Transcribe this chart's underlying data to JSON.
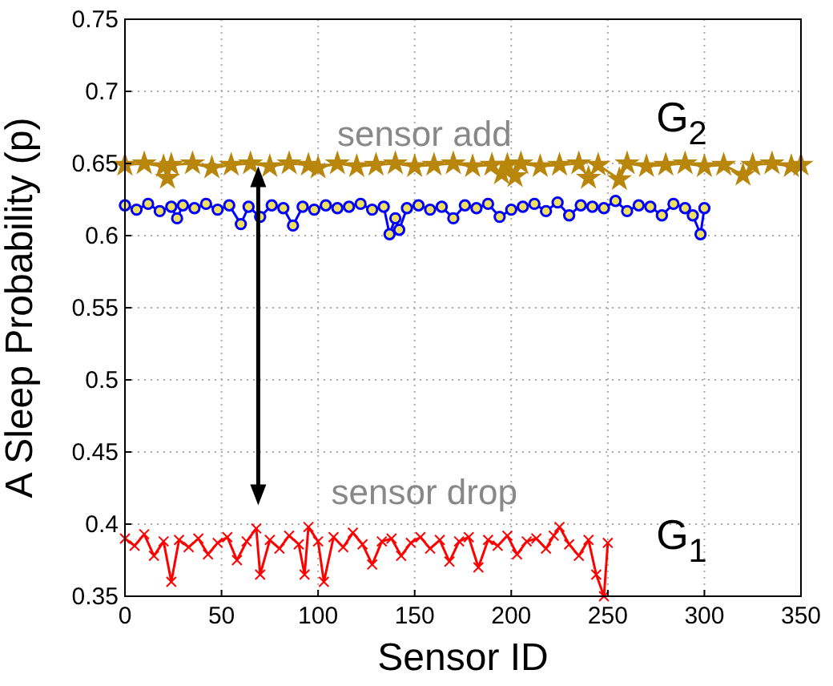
{
  "chart_data": {
    "type": "line",
    "xlabel": "Sensor ID",
    "ylabel": "A Sleep Probability (p)",
    "xlim": [
      0,
      350
    ],
    "ylim": [
      0.35,
      0.75
    ],
    "xticks": [
      0,
      50,
      100,
      150,
      200,
      250,
      300,
      350
    ],
    "yticks": [
      {
        "value": 0.35,
        "label": "0.35"
      },
      {
        "value": 0.4,
        "label": "0.4"
      },
      {
        "value": 0.45,
        "label": "0.45"
      },
      {
        "value": 0.5,
        "label": "0.5"
      },
      {
        "value": 0.55,
        "label": "0.55"
      },
      {
        "value": 0.6,
        "label": "0.6"
      },
      {
        "value": 0.65,
        "label": "0.65"
      },
      {
        "value": 0.7,
        "label": "0.7"
      },
      {
        "value": 0.75,
        "label": "0.75"
      }
    ],
    "grid": true,
    "series": [
      {
        "color": "#b8860b",
        "marker": "star",
        "x": [
          0,
          10,
          20,
          22,
          24,
          35,
          45,
          55,
          65,
          75,
          85,
          95,
          100,
          110,
          120,
          130,
          140,
          150,
          160,
          170,
          180,
          190,
          195,
          198,
          202,
          205,
          215,
          225,
          235,
          240,
          245,
          256,
          260,
          270,
          280,
          290,
          300,
          310,
          320,
          325,
          335,
          345,
          350
        ],
        "values": [
          0.649,
          0.65,
          0.648,
          0.64,
          0.649,
          0.65,
          0.647,
          0.649,
          0.65,
          0.648,
          0.65,
          0.649,
          0.647,
          0.65,
          0.648,
          0.649,
          0.65,
          0.648,
          0.649,
          0.65,
          0.648,
          0.649,
          0.643,
          0.649,
          0.641,
          0.65,
          0.648,
          0.649,
          0.65,
          0.64,
          0.649,
          0.639,
          0.65,
          0.648,
          0.649,
          0.65,
          0.648,
          0.649,
          0.642,
          0.649,
          0.65,
          0.648,
          0.649
        ]
      },
      {
        "color": "#0000ff",
        "marker": "circle",
        "x": [
          0,
          6,
          12,
          18,
          24,
          27,
          30,
          36,
          42,
          48,
          54,
          60,
          64,
          70,
          76,
          82,
          87,
          92,
          98,
          104,
          110,
          116,
          122,
          128,
          134,
          137,
          140,
          142,
          146,
          152,
          158,
          164,
          170,
          176,
          182,
          188,
          194,
          200,
          206,
          212,
          218,
          224,
          230,
          236,
          242,
          248,
          254,
          260,
          266,
          272,
          278,
          284,
          290,
          294,
          298,
          300
        ],
        "values": [
          0.621,
          0.618,
          0.622,
          0.617,
          0.62,
          0.612,
          0.621,
          0.619,
          0.622,
          0.618,
          0.621,
          0.608,
          0.62,
          0.613,
          0.621,
          0.619,
          0.607,
          0.62,
          0.618,
          0.621,
          0.619,
          0.62,
          0.622,
          0.618,
          0.62,
          0.601,
          0.612,
          0.604,
          0.619,
          0.621,
          0.618,
          0.62,
          0.612,
          0.621,
          0.619,
          0.622,
          0.613,
          0.618,
          0.62,
          0.622,
          0.617,
          0.623,
          0.614,
          0.621,
          0.62,
          0.619,
          0.624,
          0.617,
          0.621,
          0.62,
          0.614,
          0.622,
          0.619,
          0.614,
          0.601,
          0.619
        ]
      },
      {
        "color": "#ff0000",
        "marker": "cross",
        "x": [
          0,
          5,
          10,
          15,
          20,
          24,
          28,
          33,
          38,
          43,
          48,
          53,
          58,
          63,
          68,
          70,
          75,
          80,
          85,
          90,
          93,
          95,
          100,
          103,
          108,
          113,
          118,
          123,
          128,
          133,
          138,
          143,
          148,
          153,
          158,
          163,
          168,
          173,
          178,
          183,
          188,
          193,
          198,
          203,
          208,
          213,
          218,
          222,
          225,
          230,
          235,
          240,
          244,
          248,
          250
        ],
        "values": [
          0.39,
          0.385,
          0.393,
          0.378,
          0.388,
          0.36,
          0.389,
          0.384,
          0.39,
          0.379,
          0.387,
          0.391,
          0.375,
          0.388,
          0.397,
          0.365,
          0.389,
          0.383,
          0.392,
          0.386,
          0.365,
          0.398,
          0.388,
          0.36,
          0.391,
          0.384,
          0.394,
          0.386,
          0.372,
          0.388,
          0.39,
          0.378,
          0.387,
          0.391,
          0.383,
          0.389,
          0.374,
          0.388,
          0.391,
          0.37,
          0.389,
          0.385,
          0.392,
          0.379,
          0.388,
          0.39,
          0.383,
          0.392,
          0.398,
          0.386,
          0.378,
          0.389,
          0.365,
          0.35,
          0.387
        ]
      }
    ],
    "annotations": [
      "sensor add",
      "sensor drop",
      "G$_{2}$",
      "G$_{1}$"
    ]
  }
}
